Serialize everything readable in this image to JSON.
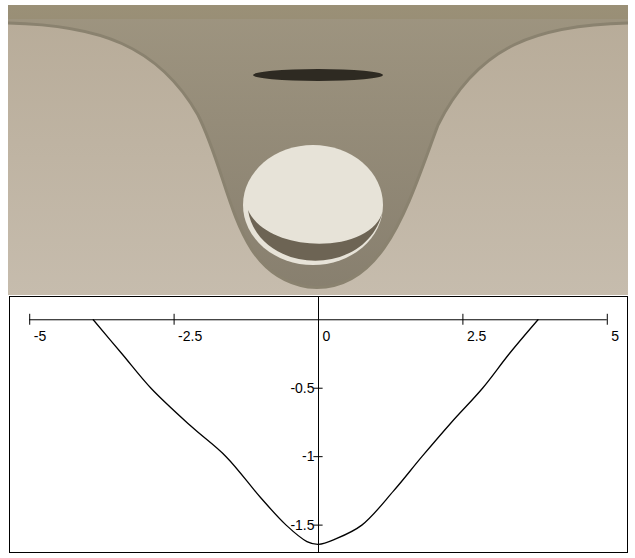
{
  "chart_data": {
    "type": "line",
    "x": [
      -3.9,
      -3.4,
      -2.9,
      -2.2,
      -1.6,
      -1.0,
      -0.56,
      -0.2,
      0,
      0.3,
      0.75,
      1.3,
      1.79,
      2.3,
      2.84,
      3.3,
      3.8
    ],
    "values": [
      0,
      -0.25,
      -0.5,
      -0.78,
      -1.0,
      -1.3,
      -1.5,
      -1.62,
      -1.64,
      -1.6,
      -1.5,
      -1.25,
      -1.0,
      -0.75,
      -0.5,
      -0.25,
      0
    ],
    "color": "#000000",
    "xlim": [
      -5.35,
      5.35
    ],
    "xticks": [
      -5,
      -2.5,
      0,
      2.5,
      5
    ],
    "ylim": [
      -1.7,
      0.17
    ],
    "yticks": [
      -0.5,
      -1,
      -1.5
    ],
    "grid": false
  }
}
